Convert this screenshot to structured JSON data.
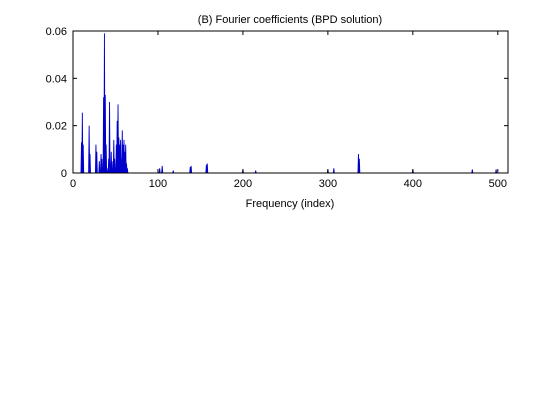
{
  "chart_data": {
    "type": "line",
    "title": "(B) Fourier coefficients (BPD solution)",
    "xlabel": "Frequency (index)",
    "ylabel": "",
    "xlim": [
      0,
      512
    ],
    "ylim": [
      0,
      0.06
    ],
    "xticks": [
      0,
      100,
      200,
      300,
      400,
      500
    ],
    "yticks": [
      0,
      0.02,
      0.04,
      0.06
    ],
    "xtick_labels": [
      "0",
      "100",
      "200",
      "300",
      "400",
      "500"
    ],
    "ytick_labels": [
      "0",
      "0.02",
      "0.04",
      "0.06"
    ],
    "grid": false,
    "line_color": "#0000cc",
    "series": [
      {
        "spikes": [
          [
            10,
            0.013
          ],
          [
            11,
            0.0255
          ],
          [
            12,
            0.012
          ],
          [
            19,
            0.02
          ],
          [
            20,
            0.008
          ],
          [
            27,
            0.012
          ],
          [
            28,
            0.009
          ],
          [
            31,
            0.005
          ],
          [
            33,
            0.008
          ],
          [
            34,
            0.006
          ],
          [
            36,
            0.032
          ],
          [
            37,
            0.059
          ],
          [
            38,
            0.033
          ],
          [
            39,
            0.012
          ],
          [
            40,
            0.002
          ],
          [
            42,
            0.006
          ],
          [
            43,
            0.03
          ],
          [
            44,
            0.004
          ],
          [
            45,
            0.009
          ],
          [
            46,
            0.005
          ],
          [
            48,
            0.014
          ],
          [
            49,
            0.006
          ],
          [
            51,
            0.012
          ],
          [
            52,
            0.022
          ],
          [
            53,
            0.029
          ],
          [
            54,
            0.015
          ],
          [
            55,
            0.012
          ],
          [
            56,
            0.014
          ],
          [
            57,
            0.006
          ],
          [
            58,
            0.018
          ],
          [
            59,
            0.012
          ],
          [
            60,
            0.014
          ],
          [
            61,
            0.009
          ],
          [
            62,
            0.012
          ],
          [
            63,
            0.004
          ],
          [
            64,
            0.002
          ],
          [
            102,
            0.002
          ],
          [
            105,
            0.003
          ],
          [
            118,
            0.001
          ],
          [
            138,
            0.0025
          ],
          [
            139,
            0.003
          ],
          [
            157,
            0.0035
          ],
          [
            158,
            0.004
          ],
          [
            200,
            0.0015
          ],
          [
            215,
            0.001
          ],
          [
            300,
            0.0015
          ],
          [
            307,
            0.002
          ],
          [
            336,
            0.008
          ],
          [
            337,
            0.006
          ],
          [
            400,
            0.0015
          ],
          [
            470,
            0.0015
          ],
          [
            498,
            0.0015
          ]
        ]
      }
    ]
  }
}
